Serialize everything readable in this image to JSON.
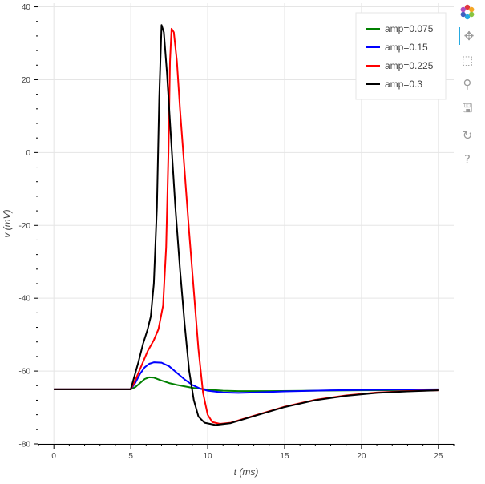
{
  "chart_data": {
    "type": "line",
    "title": "",
    "xlabel": "t (ms)",
    "ylabel": "v (mV)",
    "xlim": [
      -1,
      26
    ],
    "ylim": [
      -80,
      41
    ],
    "xticks": [
      0,
      5,
      10,
      15,
      20,
      25
    ],
    "yticks": [
      -80,
      -60,
      -40,
      -20,
      0,
      20,
      40
    ],
    "grid": true,
    "legend_position": "top-right",
    "series": [
      {
        "name": "amp=0.075",
        "color": "#008000",
        "points": [
          [
            0,
            -65
          ],
          [
            5,
            -65
          ],
          [
            5.3,
            -64.4
          ],
          [
            5.6,
            -63.3
          ],
          [
            5.9,
            -62.2
          ],
          [
            6.2,
            -61.7
          ],
          [
            6.5,
            -61.8
          ],
          [
            7,
            -62.6
          ],
          [
            7.5,
            -63.3
          ],
          [
            8,
            -63.8
          ],
          [
            9,
            -64.6
          ],
          [
            10,
            -65.1
          ],
          [
            11,
            -65.4
          ],
          [
            12,
            -65.5
          ],
          [
            14,
            -65.5
          ],
          [
            17,
            -65.4
          ],
          [
            20,
            -65.3
          ],
          [
            25,
            -65.2
          ]
        ]
      },
      {
        "name": "amp=0.15",
        "color": "#0000ff",
        "points": [
          [
            0,
            -65
          ],
          [
            5,
            -65
          ],
          [
            5.3,
            -63.2
          ],
          [
            5.6,
            -60.8
          ],
          [
            5.9,
            -59
          ],
          [
            6.2,
            -58
          ],
          [
            6.5,
            -57.6
          ],
          [
            7,
            -57.7
          ],
          [
            7.5,
            -58.7
          ],
          [
            8,
            -60.5
          ],
          [
            8.5,
            -62.3
          ],
          [
            9,
            -63.8
          ],
          [
            9.5,
            -64.8
          ],
          [
            10,
            -65.4
          ],
          [
            11,
            -65.9
          ],
          [
            12,
            -66
          ],
          [
            13,
            -65.9
          ],
          [
            15,
            -65.6
          ],
          [
            18,
            -65.3
          ],
          [
            22,
            -65.1
          ],
          [
            25,
            -65
          ]
        ]
      },
      {
        "name": "amp=0.225",
        "color": "#ff0000",
        "points": [
          [
            0,
            -65
          ],
          [
            5,
            -65
          ],
          [
            5.3,
            -62.5
          ],
          [
            5.7,
            -58.5
          ],
          [
            6.1,
            -54.5
          ],
          [
            6.5,
            -51.5
          ],
          [
            6.8,
            -48.5
          ],
          [
            7.1,
            -42
          ],
          [
            7.3,
            -26
          ],
          [
            7.45,
            0
          ],
          [
            7.55,
            25
          ],
          [
            7.65,
            34
          ],
          [
            7.8,
            33
          ],
          [
            8,
            25
          ],
          [
            8.2,
            12
          ],
          [
            8.5,
            -5
          ],
          [
            8.8,
            -22
          ],
          [
            9.1,
            -38
          ],
          [
            9.4,
            -54
          ],
          [
            9.7,
            -66
          ],
          [
            10,
            -72
          ],
          [
            10.3,
            -74
          ],
          [
            10.8,
            -74.5
          ],
          [
            11.5,
            -74.2
          ],
          [
            13,
            -72.3
          ],
          [
            15,
            -69.8
          ],
          [
            17,
            -67.9
          ],
          [
            19,
            -66.7
          ],
          [
            21,
            -65.9
          ],
          [
            23,
            -65.5
          ],
          [
            25,
            -65.3
          ]
        ]
      },
      {
        "name": "amp=0.3",
        "color": "#000000",
        "points": [
          [
            0,
            -65
          ],
          [
            5,
            -65
          ],
          [
            5.2,
            -62
          ],
          [
            5.5,
            -57.5
          ],
          [
            5.8,
            -52.5
          ],
          [
            6.1,
            -48.5
          ],
          [
            6.3,
            -45
          ],
          [
            6.5,
            -36
          ],
          [
            6.7,
            -15
          ],
          [
            6.85,
            15
          ],
          [
            7,
            35
          ],
          [
            7.15,
            33
          ],
          [
            7.35,
            22
          ],
          [
            7.6,
            5
          ],
          [
            7.9,
            -15
          ],
          [
            8.2,
            -32
          ],
          [
            8.5,
            -47
          ],
          [
            8.8,
            -60
          ],
          [
            9.1,
            -68
          ],
          [
            9.4,
            -72.5
          ],
          [
            9.8,
            -74.2
          ],
          [
            10.5,
            -74.8
          ],
          [
            11.5,
            -74.3
          ],
          [
            13,
            -72.4
          ],
          [
            15,
            -69.9
          ],
          [
            17,
            -68
          ],
          [
            19,
            -66.8
          ],
          [
            21,
            -66
          ],
          [
            23,
            -65.6
          ],
          [
            25,
            -65.3
          ]
        ]
      }
    ]
  },
  "toolbar": {
    "logo_name": "bokeh-logo",
    "tools": [
      {
        "name": "pan-tool",
        "glyph": "✥"
      },
      {
        "name": "box-zoom-tool",
        "glyph": "⬚"
      },
      {
        "name": "wheel-zoom-tool",
        "glyph": "⚲"
      },
      {
        "name": "save-tool",
        "glyph": "🖫"
      },
      {
        "name": "reset-tool",
        "glyph": "↻"
      },
      {
        "name": "help-tool",
        "glyph": "?"
      }
    ]
  }
}
